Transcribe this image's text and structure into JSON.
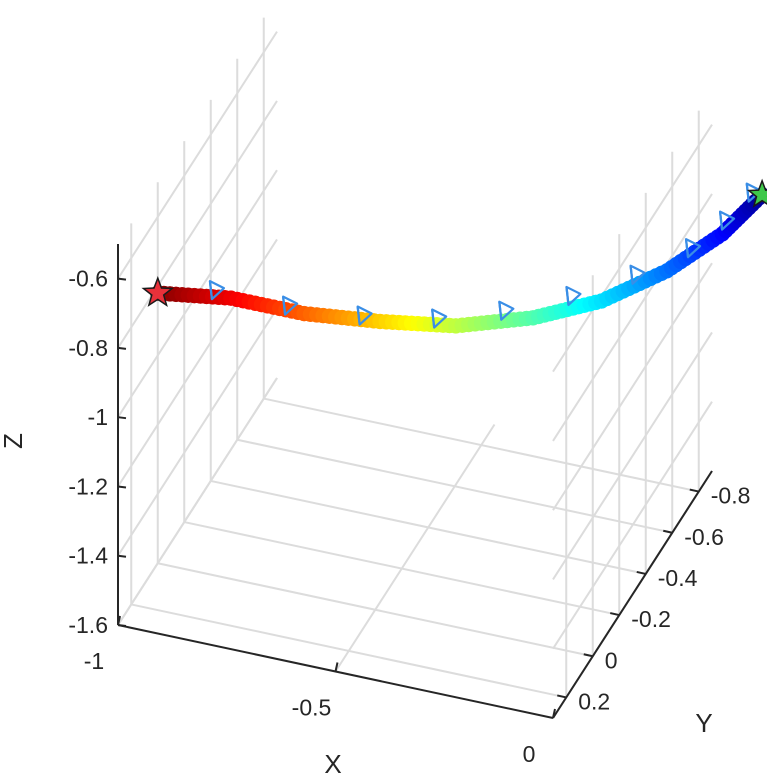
{
  "chart_data": {
    "type": "line3d",
    "title": "",
    "xlabel": "X",
    "ylabel": "Y",
    "zlabel": "Z",
    "x_ticks": [
      {
        "value": -1,
        "label": "-1"
      },
      {
        "value": -0.5,
        "label": "-0.5"
      },
      {
        "value": 0,
        "label": "0"
      }
    ],
    "y_ticks": [
      {
        "value": 0.2,
        "label": "0.2"
      },
      {
        "value": 0,
        "label": "0"
      },
      {
        "value": -0.2,
        "label": "-0.2"
      },
      {
        "value": -0.4,
        "label": "-0.4"
      },
      {
        "value": -0.6,
        "label": "-0.6"
      },
      {
        "value": -0.8,
        "label": "-0.8"
      }
    ],
    "z_ticks": [
      {
        "value": -0.6,
        "label": "-0.6"
      },
      {
        "value": -0.8,
        "label": "-0.8"
      },
      {
        "value": -1,
        "label": "-1"
      },
      {
        "value": -1.2,
        "label": "-1.2"
      },
      {
        "value": -1.4,
        "label": "-1.4"
      },
      {
        "value": -1.6,
        "label": "-1.6"
      }
    ],
    "grid": true,
    "colormap": "jet (dark red at start → dark blue at end)",
    "trajectory": [
      {
        "x": -1.0,
        "y": 0.0,
        "z": -0.82
      },
      {
        "x": -0.85,
        "y": -0.06,
        "z": -0.83
      },
      {
        "x": -0.7,
        "y": -0.12,
        "z": -0.87
      },
      {
        "x": -0.55,
        "y": -0.2,
        "z": -0.9
      },
      {
        "x": -0.4,
        "y": -0.28,
        "z": -0.92
      },
      {
        "x": -0.25,
        "y": -0.37,
        "z": -0.91
      },
      {
        "x": -0.12,
        "y": -0.46,
        "z": -0.88
      },
      {
        "x": 0.0,
        "y": -0.56,
        "z": -0.82
      },
      {
        "x": 0.1,
        "y": -0.65,
        "z": -0.74
      },
      {
        "x": 0.17,
        "y": -0.72,
        "z": -0.65
      }
    ],
    "camera_markers": [
      {
        "x": -0.88,
        "y": -0.03,
        "z": -0.8
      },
      {
        "x": -0.73,
        "y": -0.09,
        "z": -0.84
      },
      {
        "x": -0.58,
        "y": -0.16,
        "z": -0.87
      },
      {
        "x": -0.43,
        "y": -0.23,
        "z": -0.88
      },
      {
        "x": -0.3,
        "y": -0.31,
        "z": -0.87
      },
      {
        "x": -0.17,
        "y": -0.39,
        "z": -0.84
      },
      {
        "x": -0.05,
        "y": -0.48,
        "z": -0.8
      },
      {
        "x": 0.05,
        "y": -0.57,
        "z": -0.75
      },
      {
        "x": 0.11,
        "y": -0.63,
        "z": -0.69
      },
      {
        "x": 0.15,
        "y": -0.7,
        "z": -0.64
      }
    ],
    "start_marker": {
      "label": "start",
      "color": "#e8313a",
      "x": -1.0,
      "y": 0.0,
      "z": -0.82
    },
    "end_marker": {
      "label": "end",
      "color": "#3ec84a",
      "x": 0.17,
      "y": -0.72,
      "z": -0.65
    },
    "camera_color": "#3a8ee6"
  }
}
